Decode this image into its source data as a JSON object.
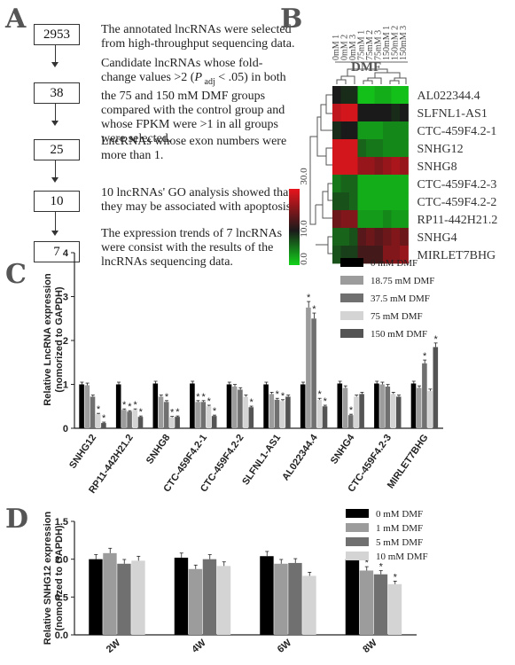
{
  "panels": {
    "a": "A",
    "b": "B",
    "c": "C",
    "d": "D"
  },
  "flowchart": {
    "steps": [
      {
        "count": "2953",
        "text": "The annotated lncRNAs were selected from high-throughput sequencing data."
      },
      {
        "count": "38",
        "text_pre": " Candidate lncRNAs whose fold-change values >2 (",
        "text_p": "P",
        "text_sub": " adj",
        "text_post": " < .05) in both the 75 and 150 mM DMF groups compared with the control group and whose FPKM were >1 in all groups were selected."
      },
      {
        "count": "25",
        "text": "LncRNAs whose exon numbers were more than 1."
      },
      {
        "count": "10",
        "text": "10 lncRNAs' GO analysis showed that they may be associated with apoptosis."
      },
      {
        "count": "7",
        "text": "The expression trends of 7 lncRNAs were consist with the results of the lncRNAs sequencing data."
      }
    ]
  },
  "heatmap": {
    "columns": [
      "0mM 1",
      "0mM 2",
      "0mM 3",
      "75mM 1",
      "75mM 2",
      "75mM 3",
      "150mM 1",
      "150mM 2",
      "150mM 3"
    ],
    "group_label": "DMF",
    "scale_ticks": [
      "30.0",
      "10.0",
      "0.0"
    ],
    "colors": {
      "high": "#e8141c",
      "mid": "#1a1a1a",
      "low": "#12d21a"
    },
    "rows": [
      {
        "name": "AL022344.4",
        "values": [
          0.5,
          0.45,
          0.45,
          0.05,
          0.05,
          0.1,
          0.1,
          0.05,
          0.05
        ]
      },
      {
        "name": "SLFNL1-AS1",
        "values": [
          0.9,
          0.95,
          0.95,
          0.5,
          0.5,
          0.5,
          0.5,
          0.45,
          0.5
        ]
      },
      {
        "name": "CTC-459F4.2-1",
        "values": [
          0.45,
          0.5,
          0.5,
          0.15,
          0.15,
          0.15,
          0.2,
          0.2,
          0.2
        ]
      },
      {
        "name": "SNHG12",
        "values": [
          0.95,
          0.95,
          0.95,
          0.3,
          0.25,
          0.25,
          0.2,
          0.2,
          0.2
        ]
      },
      {
        "name": "SNHG8",
        "values": [
          0.95,
          0.95,
          0.95,
          0.8,
          0.8,
          0.75,
          0.8,
          0.85,
          0.8
        ]
      },
      {
        "name": "CTC-459F4.2-3",
        "values": [
          0.25,
          0.3,
          0.3,
          0.1,
          0.1,
          0.1,
          0.1,
          0.1,
          0.1
        ]
      },
      {
        "name": "CTC-459F4.2-2",
        "values": [
          0.35,
          0.35,
          0.3,
          0.1,
          0.1,
          0.1,
          0.1,
          0.1,
          0.1
        ]
      },
      {
        "name": "RP11-442H21.2",
        "values": [
          0.7,
          0.75,
          0.75,
          0.15,
          0.15,
          0.15,
          0.2,
          0.15,
          0.15
        ]
      },
      {
        "name": "SNHG4",
        "values": [
          0.3,
          0.3,
          0.35,
          0.65,
          0.7,
          0.65,
          0.7,
          0.75,
          0.7
        ]
      },
      {
        "name": "MIRLET7BHG",
        "values": [
          0.35,
          0.4,
          0.4,
          0.6,
          0.6,
          0.6,
          0.75,
          0.75,
          0.8
        ]
      }
    ]
  },
  "chart_data": [
    {
      "type": "bar",
      "ylabel": "Relative LncRNA expression (nomorized to GAPDH)",
      "ylabel_line1": "Relative LncRNA expression",
      "ylabel_line2": "(nomorized to GAPDH)",
      "ylim": [
        0,
        4
      ],
      "yticks": [
        "0",
        "1",
        "2",
        "3",
        "4"
      ],
      "categories": [
        "SNHG12",
        "RP11-442H21.2",
        "SNHG8",
        "CTC-459F4.2-1",
        "CTC-459F4.2-2",
        "SLFNL1-AS1",
        "AL022344.4",
        "SNHG4",
        "CTC-459F4.2-3",
        "MIRLET7BHG"
      ],
      "series": [
        {
          "name": "0 mM DMF",
          "color": "#000000",
          "values": [
            1.0,
            1.0,
            1.02,
            1.02,
            1.0,
            1.0,
            1.0,
            1.02,
            1.02,
            1.02
          ]
        },
        {
          "name": "18.75 mM DMF",
          "color": "#9c9c9c",
          "values": [
            0.98,
            0.42,
            0.72,
            0.6,
            0.95,
            0.78,
            2.75,
            0.92,
            1.0,
            0.92
          ]
        },
        {
          "name": "37.5 mM DMF",
          "color": "#707070",
          "values": [
            0.72,
            0.38,
            0.6,
            0.6,
            0.88,
            0.65,
            2.5,
            0.3,
            0.95,
            1.48
          ]
        },
        {
          "name": "75 mM DMF",
          "color": "#d4d4d4",
          "values": [
            0.32,
            0.42,
            0.25,
            0.5,
            0.72,
            0.62,
            0.65,
            0.72,
            0.78,
            0.85
          ]
        },
        {
          "name": "150 mM DMF",
          "color": "#545454",
          "values": [
            0.12,
            0.26,
            0.26,
            0.28,
            0.48,
            0.72,
            0.5,
            0.78,
            0.72,
            1.85
          ]
        }
      ]
    },
    {
      "type": "bar",
      "ylabel": "Relative SNHG12 expression (nomorized to GAPDH)",
      "ylabel_line1": "Relative SNHG12 expression",
      "ylabel_line2": "(nomorized to GAPDH)",
      "ylim": [
        0,
        1.5
      ],
      "yticks": [
        "0.0",
        "0.5",
        "1.0",
        "1.5"
      ],
      "categories": [
        "2W",
        "4W",
        "6W",
        "8W"
      ],
      "series": [
        {
          "name": "0 mM DMF",
          "color": "#000000",
          "values": [
            1.0,
            1.02,
            1.04,
            1.0
          ]
        },
        {
          "name": "1 mM DMF",
          "color": "#9c9c9c",
          "values": [
            1.08,
            0.87,
            0.94,
            0.85
          ]
        },
        {
          "name": "5 mM DMF",
          "color": "#707070",
          "values": [
            0.94,
            1.0,
            0.95,
            0.8
          ]
        },
        {
          "name": "10 mM DMF",
          "color": "#d4d4d4",
          "values": [
            0.98,
            0.91,
            0.78,
            0.67
          ]
        }
      ]
    }
  ]
}
